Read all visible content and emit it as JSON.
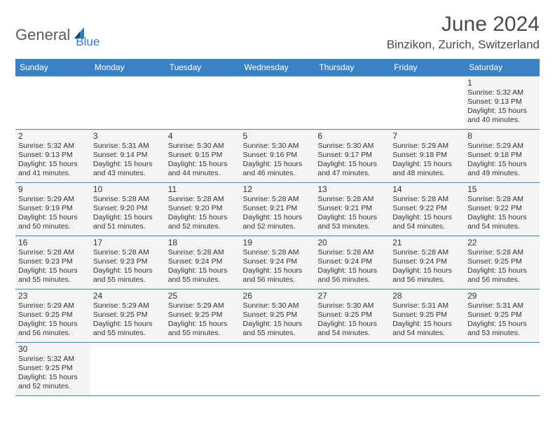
{
  "logo": {
    "part1": "General",
    "part2": "Blue"
  },
  "title": "June 2024",
  "location": "Binzikon, Zurich, Switzerland",
  "colors": {
    "header_bg": "#3b82c4",
    "header_text": "#ffffff",
    "cell_bg": "#f4f4f4",
    "border": "#3b82c4",
    "logo_gray": "#5a5a5a",
    "logo_blue": "#2d7bc0"
  },
  "weekdays": [
    "Sunday",
    "Monday",
    "Tuesday",
    "Wednesday",
    "Thursday",
    "Friday",
    "Saturday"
  ],
  "days": {
    "1": {
      "sunrise": "5:32 AM",
      "sunset": "9:13 PM",
      "daylight": "15 hours and 40 minutes."
    },
    "2": {
      "sunrise": "5:32 AM",
      "sunset": "9:13 PM",
      "daylight": "15 hours and 41 minutes."
    },
    "3": {
      "sunrise": "5:31 AM",
      "sunset": "9:14 PM",
      "daylight": "15 hours and 43 minutes."
    },
    "4": {
      "sunrise": "5:30 AM",
      "sunset": "9:15 PM",
      "daylight": "15 hours and 44 minutes."
    },
    "5": {
      "sunrise": "5:30 AM",
      "sunset": "9:16 PM",
      "daylight": "15 hours and 46 minutes."
    },
    "6": {
      "sunrise": "5:30 AM",
      "sunset": "9:17 PM",
      "daylight": "15 hours and 47 minutes."
    },
    "7": {
      "sunrise": "5:29 AM",
      "sunset": "9:18 PM",
      "daylight": "15 hours and 48 minutes."
    },
    "8": {
      "sunrise": "5:29 AM",
      "sunset": "9:18 PM",
      "daylight": "15 hours and 49 minutes."
    },
    "9": {
      "sunrise": "5:29 AM",
      "sunset": "9:19 PM",
      "daylight": "15 hours and 50 minutes."
    },
    "10": {
      "sunrise": "5:28 AM",
      "sunset": "9:20 PM",
      "daylight": "15 hours and 51 minutes."
    },
    "11": {
      "sunrise": "5:28 AM",
      "sunset": "9:20 PM",
      "daylight": "15 hours and 52 minutes."
    },
    "12": {
      "sunrise": "5:28 AM",
      "sunset": "9:21 PM",
      "daylight": "15 hours and 52 minutes."
    },
    "13": {
      "sunrise": "5:28 AM",
      "sunset": "9:21 PM",
      "daylight": "15 hours and 53 minutes."
    },
    "14": {
      "sunrise": "5:28 AM",
      "sunset": "9:22 PM",
      "daylight": "15 hours and 54 minutes."
    },
    "15": {
      "sunrise": "5:28 AM",
      "sunset": "9:22 PM",
      "daylight": "15 hours and 54 minutes."
    },
    "16": {
      "sunrise": "5:28 AM",
      "sunset": "9:23 PM",
      "daylight": "15 hours and 55 minutes."
    },
    "17": {
      "sunrise": "5:28 AM",
      "sunset": "9:23 PM",
      "daylight": "15 hours and 55 minutes."
    },
    "18": {
      "sunrise": "5:28 AM",
      "sunset": "9:24 PM",
      "daylight": "15 hours and 55 minutes."
    },
    "19": {
      "sunrise": "5:28 AM",
      "sunset": "9:24 PM",
      "daylight": "15 hours and 56 minutes."
    },
    "20": {
      "sunrise": "5:28 AM",
      "sunset": "9:24 PM",
      "daylight": "15 hours and 56 minutes."
    },
    "21": {
      "sunrise": "5:28 AM",
      "sunset": "9:24 PM",
      "daylight": "15 hours and 56 minutes."
    },
    "22": {
      "sunrise": "5:28 AM",
      "sunset": "9:25 PM",
      "daylight": "15 hours and 56 minutes."
    },
    "23": {
      "sunrise": "5:29 AM",
      "sunset": "9:25 PM",
      "daylight": "15 hours and 56 minutes."
    },
    "24": {
      "sunrise": "5:29 AM",
      "sunset": "9:25 PM",
      "daylight": "15 hours and 55 minutes."
    },
    "25": {
      "sunrise": "5:29 AM",
      "sunset": "9:25 PM",
      "daylight": "15 hours and 55 minutes."
    },
    "26": {
      "sunrise": "5:30 AM",
      "sunset": "9:25 PM",
      "daylight": "15 hours and 55 minutes."
    },
    "27": {
      "sunrise": "5:30 AM",
      "sunset": "9:25 PM",
      "daylight": "15 hours and 54 minutes."
    },
    "28": {
      "sunrise": "5:31 AM",
      "sunset": "9:25 PM",
      "daylight": "15 hours and 54 minutes."
    },
    "29": {
      "sunrise": "5:31 AM",
      "sunset": "9:25 PM",
      "daylight": "15 hours and 53 minutes."
    },
    "30": {
      "sunrise": "5:32 AM",
      "sunset": "9:25 PM",
      "daylight": "15 hours and 52 minutes."
    }
  },
  "labels": {
    "sunrise": "Sunrise: ",
    "sunset": "Sunset: ",
    "daylight": "Daylight: "
  },
  "grid": [
    [
      null,
      null,
      null,
      null,
      null,
      null,
      "1"
    ],
    [
      "2",
      "3",
      "4",
      "5",
      "6",
      "7",
      "8"
    ],
    [
      "9",
      "10",
      "11",
      "12",
      "13",
      "14",
      "15"
    ],
    [
      "16",
      "17",
      "18",
      "19",
      "20",
      "21",
      "22"
    ],
    [
      "23",
      "24",
      "25",
      "26",
      "27",
      "28",
      "29"
    ],
    [
      "30",
      null,
      null,
      null,
      null,
      null,
      null
    ]
  ]
}
